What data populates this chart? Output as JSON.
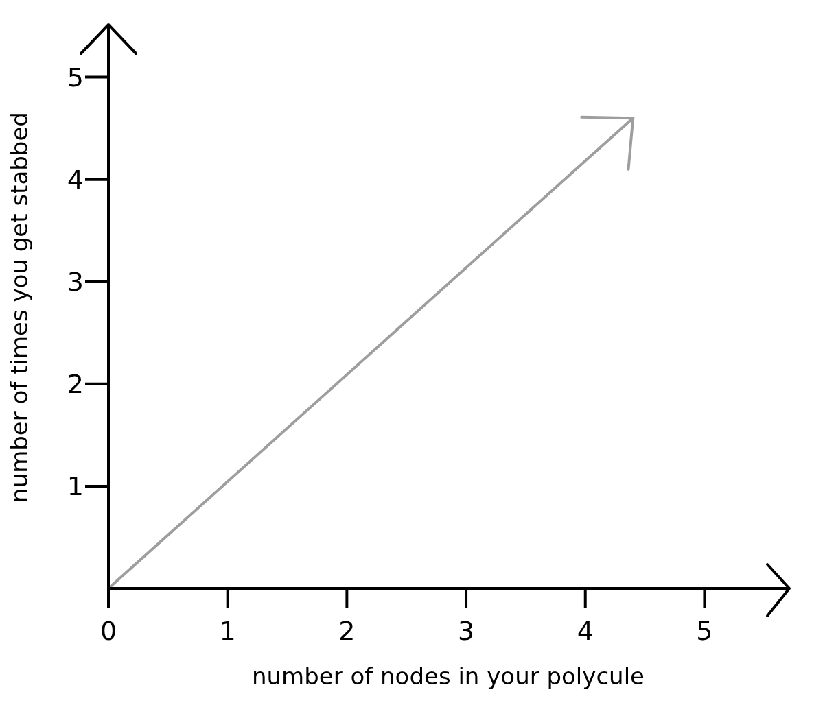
{
  "chart_data": {
    "type": "line",
    "xlabel": "number of nodes in your polycule",
    "ylabel": "number of times you get stabbed",
    "x": [
      0,
      4.4
    ],
    "series": [
      {
        "color": "#9e9e9e",
        "values": [
          0,
          4.6
        ]
      }
    ],
    "xlim": [
      0,
      5.7
    ],
    "ylim": [
      0,
      5.5
    ],
    "xticks": [
      0,
      1,
      2,
      3,
      4,
      5
    ],
    "yticks": [
      1,
      2,
      3,
      4,
      5
    ],
    "grid": false,
    "legend": false
  }
}
